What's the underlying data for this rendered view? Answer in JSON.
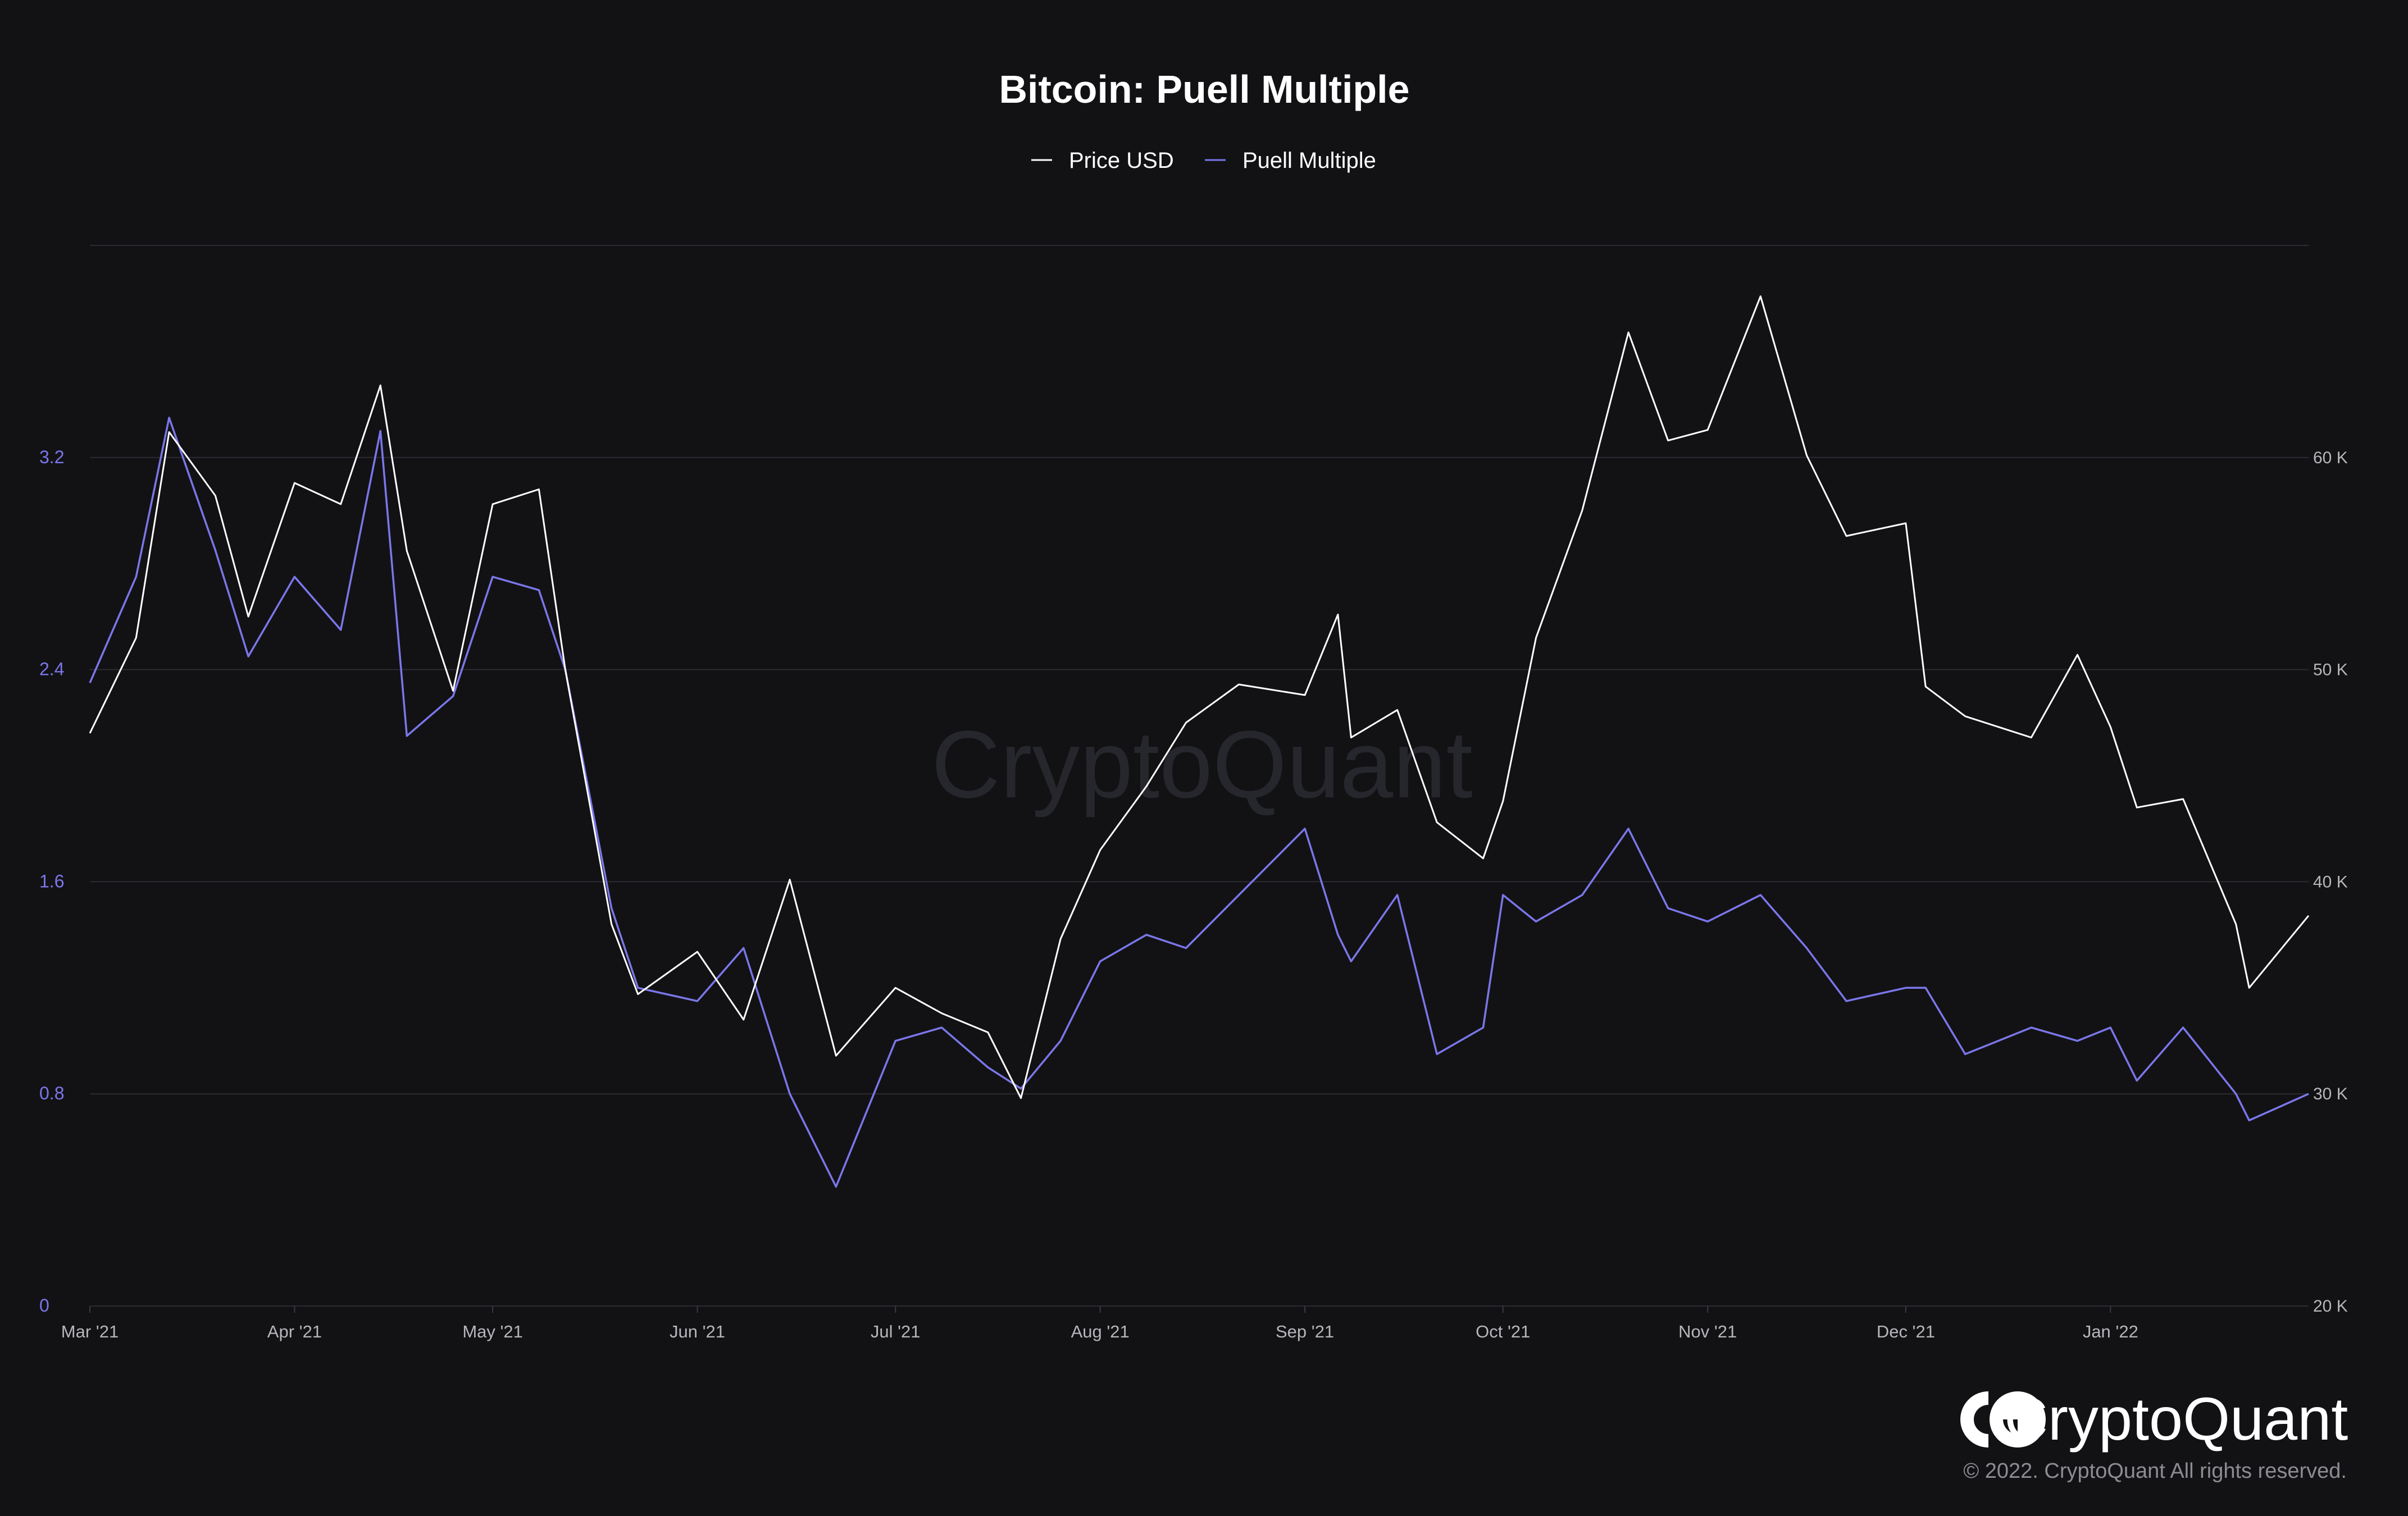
{
  "chart_data": {
    "type": "line",
    "title": "Bitcoin: Puell Multiple",
    "legend_position": "top-center",
    "grid": true,
    "x_ticks": [
      "Mar '21",
      "Apr '21",
      "May '21",
      "Jun '21",
      "Jul '21",
      "Aug '21",
      "Sep '21",
      "Oct '21",
      "Nov '21",
      "Dec '21",
      "Jan '22"
    ],
    "x_range": [
      "2021-03-01",
      "2022-01-31"
    ],
    "y_left": {
      "ticks": [
        "0",
        "0.8",
        "1.6",
        "2.4",
        "3.2"
      ],
      "range": [
        0,
        4.0
      ]
    },
    "y_right": {
      "ticks": [
        "20 K",
        "30 K",
        "40 K",
        "50 K",
        "60 K"
      ],
      "range": [
        20000,
        70000
      ]
    },
    "dates": [
      "2021-03-01",
      "2021-03-08",
      "2021-03-13",
      "2021-03-20",
      "2021-03-25",
      "2021-04-01",
      "2021-04-08",
      "2021-04-14",
      "2021-04-18",
      "2021-04-25",
      "2021-05-01",
      "2021-05-08",
      "2021-05-12",
      "2021-05-19",
      "2021-05-23",
      "2021-06-01",
      "2021-06-08",
      "2021-06-15",
      "2021-06-22",
      "2021-07-01",
      "2021-07-08",
      "2021-07-15",
      "2021-07-20",
      "2021-07-26",
      "2021-08-01",
      "2021-08-08",
      "2021-08-14",
      "2021-08-22",
      "2021-09-01",
      "2021-09-06",
      "2021-09-08",
      "2021-09-15",
      "2021-09-21",
      "2021-09-28",
      "2021-10-01",
      "2021-10-06",
      "2021-10-13",
      "2021-10-20",
      "2021-10-26",
      "2021-11-01",
      "2021-11-09",
      "2021-11-16",
      "2021-11-22",
      "2021-12-01",
      "2021-12-04",
      "2021-12-10",
      "2021-12-20",
      "2021-12-27",
      "2022-01-01",
      "2022-01-05",
      "2022-01-12",
      "2022-01-20",
      "2022-01-22",
      "2022-01-31"
    ],
    "series": [
      {
        "name": "Price USD",
        "axis": "right",
        "color": "#ffffff",
        "values": [
          47000,
          51500,
          61200,
          58200,
          52500,
          58800,
          57800,
          63400,
          55600,
          49000,
          57800,
          58500,
          50000,
          38000,
          34700,
          36700,
          33500,
          40100,
          31800,
          35000,
          33800,
          32900,
          29800,
          37300,
          41500,
          44500,
          47500,
          49300,
          48800,
          52600,
          46800,
          48100,
          42800,
          41100,
          43800,
          51500,
          57500,
          65900,
          60800,
          61300,
          67600,
          60100,
          56300,
          56900,
          49200,
          47800,
          46800,
          50700,
          47300,
          43500,
          43900,
          38000,
          35000,
          38400
        ]
      },
      {
        "name": "Puell Multiple",
        "axis": "left",
        "color": "#7b77ea",
        "values": [
          2.35,
          2.75,
          3.35,
          2.85,
          2.45,
          2.75,
          2.55,
          3.3,
          2.15,
          2.3,
          2.75,
          2.7,
          2.4,
          1.5,
          1.2,
          1.15,
          1.35,
          0.8,
          0.45,
          1.0,
          1.05,
          0.9,
          0.82,
          1.0,
          1.3,
          1.4,
          1.35,
          1.55,
          1.8,
          1.4,
          1.3,
          1.55,
          0.95,
          1.05,
          1.55,
          1.45,
          1.55,
          1.8,
          1.5,
          1.45,
          1.55,
          1.35,
          1.15,
          1.2,
          1.2,
          0.95,
          1.05,
          1.0,
          1.05,
          0.85,
          1.05,
          0.8,
          0.7,
          0.8
        ]
      }
    ]
  },
  "watermark": "CryptoQuant",
  "brand": {
    "name": "CryptoQuant",
    "copyright": "© 2022. CryptoQuant All rights reserved."
  }
}
